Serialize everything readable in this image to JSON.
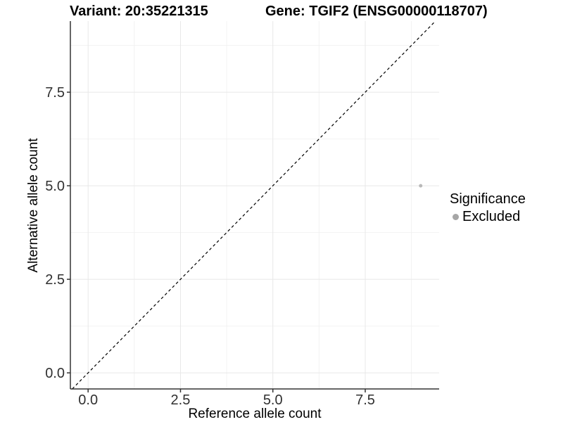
{
  "chart_data": {
    "type": "scatter",
    "title_left": "Variant: 20:35221315",
    "title_right": "Gene: TGIF2 (ENSG00000118707)",
    "xlabel": "Reference allele count",
    "ylabel": "Alternative allele count",
    "xlim": [
      -0.48,
      9.5
    ],
    "ylim": [
      -0.43,
      9.4
    ],
    "x_ticks": [
      0,
      2.5,
      5,
      7.5
    ],
    "x_tick_labels": [
      "0.0",
      "2.5",
      "5.0",
      "7.5"
    ],
    "y_ticks": [
      0,
      2.5,
      5,
      7.5
    ],
    "y_tick_labels": [
      "0.0",
      "2.5",
      "5.0",
      "7.5"
    ],
    "x_minor_ticks": [
      1.25,
      3.75,
      6.25,
      8.75
    ],
    "y_minor_ticks": [
      1.25,
      3.75,
      6.25,
      8.75
    ],
    "grid": true,
    "series": [
      {
        "name": "Excluded",
        "color": "#b9b9b9",
        "point_radius": 2.5,
        "points": [
          {
            "x": 9,
            "y": 5
          }
        ]
      }
    ],
    "reference_line": {
      "type": "identity",
      "slope": 1,
      "intercept": 0,
      "style": "dashed",
      "color": "#000000"
    },
    "legend": {
      "title": "Significance",
      "position": "right",
      "items": [
        {
          "label": "Excluded",
          "color": "#a6a6a6"
        }
      ]
    },
    "colors": {
      "grid_major": "#e8e8e8",
      "grid_minor": "#f2f2f2",
      "axis_line": "#333333",
      "tick_mark": "#333333",
      "tick_label": "#303030",
      "background": "#ffffff"
    }
  }
}
